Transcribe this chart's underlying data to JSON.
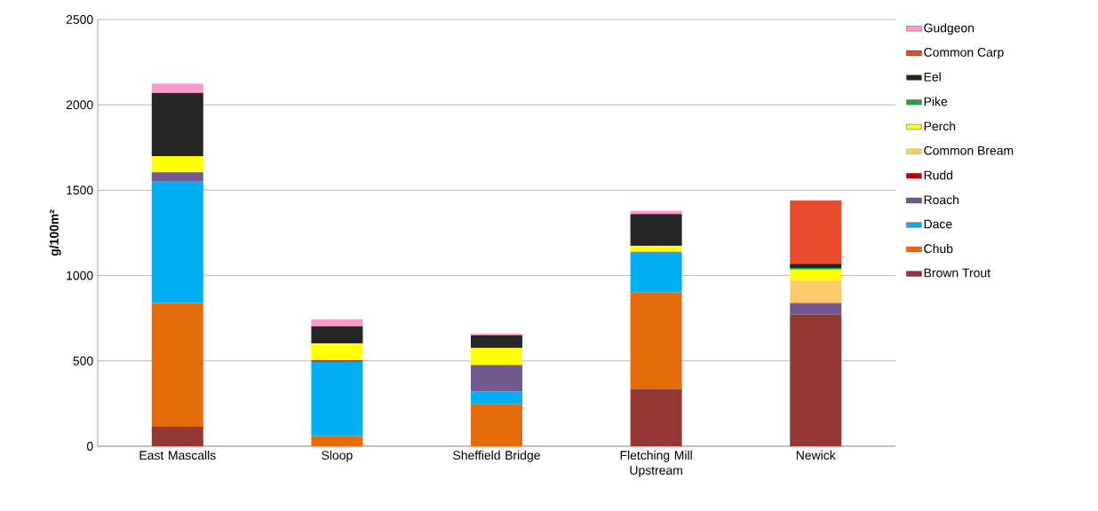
{
  "chart_data": {
    "type": "bar",
    "stacked": true,
    "ylabel": "g/100m²",
    "categories": [
      "East Mascalls",
      "Sloop",
      "Sheffield Bridge",
      "Fletching Mill Upstream",
      "Newick"
    ],
    "series": [
      {
        "name": "Brown Trout",
        "color": "#953735",
        "values": [
          115,
          0,
          0,
          335,
          770
        ]
      },
      {
        "name": "Chub",
        "color": "#e46c0a",
        "values": [
          725,
          60,
          245,
          565,
          0
        ]
      },
      {
        "name": "Dace",
        "color": "#00b0f0",
        "values": [
          710,
          435,
          75,
          235,
          0
        ]
      },
      {
        "name": "Roach",
        "color": "#725990",
        "values": [
          55,
          0,
          155,
          5,
          70
        ]
      },
      {
        "name": "Rudd",
        "color": "#c00000",
        "values": [
          0,
          8,
          0,
          0,
          0
        ]
      },
      {
        "name": "Common Bream",
        "color": "#ffc869",
        "values": [
          0,
          0,
          0,
          0,
          130
        ]
      },
      {
        "name": "Perch",
        "color": "#ffff00",
        "values": [
          95,
          100,
          100,
          35,
          65
        ]
      },
      {
        "name": "Pike",
        "color": "#00b050",
        "values": [
          0,
          0,
          0,
          0,
          10
        ]
      },
      {
        "name": "Eel",
        "color": "#262626",
        "values": [
          370,
          100,
          75,
          185,
          25
        ]
      },
      {
        "name": "Common Carp",
        "color": "#e84c2c",
        "values": [
          0,
          0,
          0,
          0,
          370
        ]
      },
      {
        "name": "Gudgeon",
        "color": "#ff99cc",
        "values": [
          55,
          40,
          10,
          20,
          0
        ]
      }
    ],
    "ylim": [
      0,
      2500
    ],
    "yticks": [
      0,
      500,
      1000,
      1500,
      2000,
      2500
    ],
    "grid": "y",
    "legend": "right"
  }
}
